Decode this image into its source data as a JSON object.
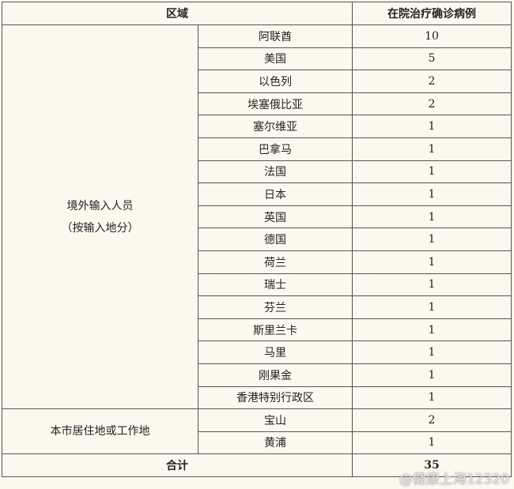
{
  "table": {
    "header": [
      "区域",
      "在院治疗确诊病例"
    ],
    "groups": [
      {
        "label": [
          "境外输入人员",
          "（按输入地分）"
        ],
        "rows": [
          [
            "阿联酋",
            10
          ],
          [
            "美国",
            5
          ],
          [
            "以色列",
            2
          ],
          [
            "埃塞俄比亚",
            2
          ],
          [
            "塞尔维亚",
            1
          ],
          [
            "巴拿马",
            1
          ],
          [
            "法国",
            1
          ],
          [
            "日本",
            1
          ],
          [
            "英国",
            1
          ],
          [
            "德国",
            1
          ],
          [
            "荷兰",
            1
          ],
          [
            "瑞士",
            1
          ],
          [
            "芬兰",
            1
          ],
          [
            "斯里兰卡",
            1
          ],
          [
            "马里",
            1
          ],
          [
            "刚果金",
            1
          ],
          [
            "香港特别行政区",
            1
          ]
        ]
      },
      {
        "label": [
          "本市居住地或工作地"
        ],
        "rows": [
          [
            "宝山",
            2
          ],
          [
            "黄浦",
            1
          ]
        ]
      }
    ],
    "total": [
      "合计",
      35
    ]
  },
  "watermark": "@健康上海12320"
}
